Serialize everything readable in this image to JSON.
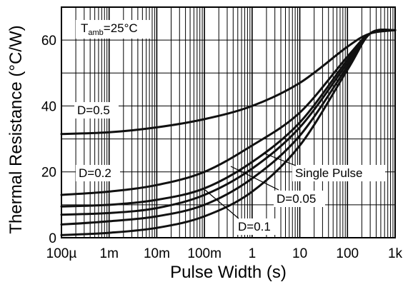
{
  "chart_data": {
    "type": "line",
    "title": "",
    "xlabel": "Pulse Width (s)",
    "ylabel": "Thermal Resistance (°C/W)",
    "x_scale": "log",
    "xlim": [
      0.0001,
      1000
    ],
    "ylim": [
      0,
      70
    ],
    "x_tick_values": [
      0.0001,
      0.001,
      0.01,
      0.1,
      1,
      10,
      100,
      1000
    ],
    "x_tick_labels": [
      "100µ",
      "1m",
      "10m",
      "100m",
      "1",
      "10",
      "100",
      "1k"
    ],
    "y_tick_values": [
      0,
      20,
      40,
      60
    ],
    "y_tick_labels": [
      "0",
      "20",
      "40",
      "60"
    ],
    "grid": true,
    "condition": {
      "main": "T",
      "sub": "amb",
      "rest": "=25°C"
    },
    "series": [
      {
        "name": "D=0.5",
        "x": [
          0.0001,
          0.001,
          0.01,
          0.1,
          1,
          10,
          100,
          300,
          1000
        ],
        "y": [
          31.5,
          32,
          33.5,
          36,
          40,
          47,
          58,
          62,
          63
        ]
      },
      {
        "name": "D=0.2",
        "x": [
          0.0001,
          0.001,
          0.01,
          0.1,
          1,
          10,
          100,
          300,
          1000
        ],
        "y": [
          13,
          14,
          16,
          20,
          28,
          38,
          55,
          62,
          63
        ]
      },
      {
        "name": "D=0.1",
        "x": [
          0.0001,
          0.001,
          0.01,
          0.1,
          1,
          10,
          100,
          300,
          1000
        ],
        "y": [
          9.5,
          10,
          11.5,
          15,
          23,
          35,
          54,
          62,
          63
        ]
      },
      {
        "name": "D=0.05",
        "x": [
          0.0001,
          0.001,
          0.01,
          0.1,
          1,
          10,
          100,
          300,
          1000
        ],
        "y": [
          7,
          7.5,
          9,
          13,
          21,
          33.5,
          53,
          62,
          63
        ]
      },
      {
        "name": "",
        "x": [
          0.0001,
          0.001,
          0.01,
          0.1,
          1,
          10,
          100,
          300,
          1000
        ],
        "y": [
          4,
          5,
          6.5,
          10,
          18,
          31,
          52,
          62,
          63
        ]
      },
      {
        "name": "Single Pulse",
        "x": [
          0.0001,
          0.001,
          0.01,
          0.1,
          1,
          10,
          100,
          300,
          1000
        ],
        "y": [
          0.8,
          1.5,
          3,
          6.5,
          14,
          28,
          51,
          62,
          63
        ]
      }
    ]
  }
}
